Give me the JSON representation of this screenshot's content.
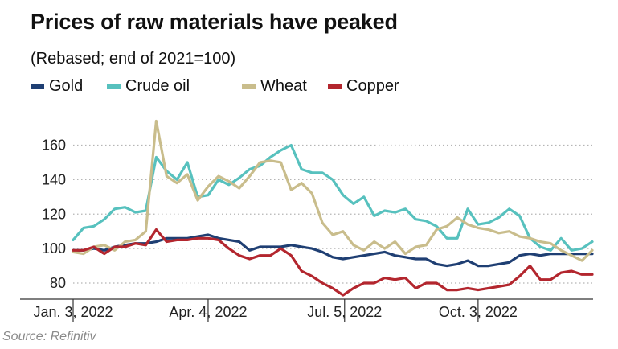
{
  "title": "Prices of raw materials have peaked",
  "subtitle": "(Rebased; end of 2021=100)",
  "source": "Source: Refinitiv",
  "colors": {
    "gold": "#1f3f73",
    "crude_oil": "#57c1be",
    "wheat": "#c9bd8c",
    "copper": "#b3262e",
    "grid": "#b5b5b5",
    "axis": "#333333"
  },
  "chart_data": {
    "type": "line",
    "title": "Prices of raw materials have peaked",
    "subtitle": "(Rebased; end of 2021=100)",
    "xlabel": "",
    "ylabel": "",
    "xlim": [
      "2022-01-03",
      "2022-12-19"
    ],
    "ylim": [
      72,
      174
    ],
    "yticks": [
      80,
      100,
      120,
      140,
      160
    ],
    "ytick_labels": [
      "80",
      "100",
      "120",
      "140",
      "160"
    ],
    "xticks": [
      "2022-01-03",
      "2022-04-04",
      "2022-07-05",
      "2022-10-03"
    ],
    "xtick_labels": [
      "Jan. 3, 2022",
      "Apr. 4, 2022",
      "Jul. 5, 2022",
      "Oct. 3, 2022"
    ],
    "grid": "horizontal dotted",
    "legend": "top",
    "x": [
      "2022-01-03",
      "2022-01-10",
      "2022-01-17",
      "2022-01-24",
      "2022-01-31",
      "2022-02-07",
      "2022-02-14",
      "2022-02-21",
      "2022-02-28",
      "2022-03-07",
      "2022-03-14",
      "2022-03-21",
      "2022-03-28",
      "2022-04-04",
      "2022-04-11",
      "2022-04-18",
      "2022-04-25",
      "2022-05-02",
      "2022-05-09",
      "2022-05-16",
      "2022-05-23",
      "2022-05-30",
      "2022-06-06",
      "2022-06-13",
      "2022-06-20",
      "2022-06-27",
      "2022-07-04",
      "2022-07-11",
      "2022-07-18",
      "2022-07-25",
      "2022-08-01",
      "2022-08-08",
      "2022-08-15",
      "2022-08-22",
      "2022-08-29",
      "2022-09-05",
      "2022-09-12",
      "2022-09-19",
      "2022-09-26",
      "2022-10-03",
      "2022-10-10",
      "2022-10-17",
      "2022-10-24",
      "2022-10-31",
      "2022-11-07",
      "2022-11-14",
      "2022-11-21",
      "2022-11-28",
      "2022-12-05",
      "2022-12-12",
      "2022-12-19"
    ],
    "series": [
      {
        "name": "Gold",
        "color_key": "gold",
        "values": [
          99,
          99,
          100,
          99,
          101,
          102,
          103,
          103,
          104,
          106,
          106,
          106,
          107,
          108,
          106,
          105,
          104,
          99,
          101,
          101,
          101,
          102,
          101,
          100,
          98,
          95,
          94,
          95,
          96,
          97,
          98,
          96,
          95,
          94,
          94,
          91,
          90,
          91,
          93,
          90,
          90,
          91,
          92,
          96,
          97,
          96,
          97,
          97,
          97,
          97,
          97
        ]
      },
      {
        "name": "Crude oil",
        "color_key": "crude_oil",
        "values": [
          105,
          112,
          113,
          117,
          123,
          124,
          121,
          122,
          153,
          145,
          140,
          150,
          130,
          131,
          140,
          137,
          141,
          146,
          148,
          153,
          157,
          160,
          146,
          144,
          144,
          140,
          131,
          126,
          130,
          119,
          122,
          121,
          123,
          117,
          116,
          113,
          106,
          106,
          123,
          114,
          115,
          118,
          123,
          119,
          106,
          101,
          99,
          106,
          99,
          100,
          104
        ]
      },
      {
        "name": "Wheat",
        "color_key": "wheat",
        "values": [
          98,
          97,
          101,
          102,
          99,
          104,
          105,
          110,
          174,
          142,
          138,
          143,
          128,
          136,
          142,
          139,
          135,
          142,
          150,
          151,
          150,
          134,
          138,
          132,
          115,
          108,
          110,
          102,
          99,
          104,
          100,
          104,
          97,
          101,
          102,
          111,
          113,
          118,
          114,
          112,
          111,
          109,
          110,
          107,
          106,
          104,
          103,
          99,
          96,
          93,
          99
        ]
      },
      {
        "name": "Copper",
        "color_key": "copper",
        "values": [
          99,
          99,
          101,
          97,
          101,
          101,
          103,
          102,
          111,
          104,
          105,
          105,
          106,
          106,
          105,
          100,
          96,
          94,
          96,
          96,
          100,
          96,
          87,
          84,
          80,
          77,
          73,
          77,
          80,
          80,
          83,
          82,
          83,
          77,
          80,
          80,
          76,
          76,
          77,
          76,
          77,
          78,
          79,
          84,
          90,
          82,
          82,
          86,
          87,
          85,
          85
        ]
      }
    ]
  }
}
